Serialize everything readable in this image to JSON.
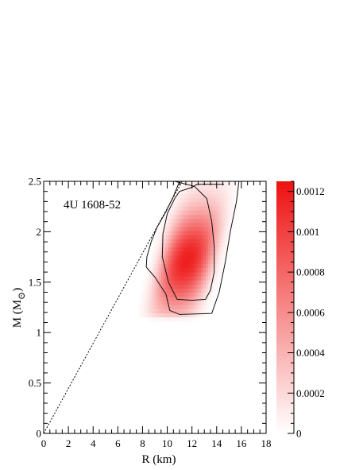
{
  "chart_data": {
    "type": "heatmap",
    "annotation": "4U 1608-52",
    "xlabel": "R (km)",
    "ylabel": "M (M",
    "ylabel_sub": "⊙",
    "ylabel_close": ")",
    "xlim": [
      0,
      18
    ],
    "ylim": [
      0,
      2.5
    ],
    "x_ticks": [
      "0",
      "2",
      "4",
      "6",
      "8",
      "10",
      "12",
      "14",
      "16",
      "18"
    ],
    "y_ticks": [
      "0",
      "0.5",
      "1",
      "1.5",
      "2",
      "2.5"
    ],
    "colorbar": {
      "range": [
        0,
        0.00125
      ],
      "ticks": [
        "0",
        "0.0002",
        "0.0004",
        "0.0006",
        "0.0008",
        "0.001",
        "0.0012"
      ],
      "low_color": "#ffffff",
      "high_color": "#ee1111"
    },
    "causality_line": {
      "style": "dotted",
      "points": [
        [
          0,
          0
        ],
        [
          11.2,
          2.5
        ]
      ]
    },
    "density": {
      "peak": [
        11.6,
        1.72
      ],
      "peak_value": 0.00118,
      "sigma_r": 1.55,
      "sigma_m": 0.36,
      "extent_r": [
        8.2,
        16.5
      ],
      "extent_m": [
        1.12,
        2.5
      ]
    },
    "contours": [
      {
        "name": "inner",
        "points": [
          [
            10.6,
            2.5
          ],
          [
            12.2,
            2.45
          ],
          [
            13.2,
            2.33
          ],
          [
            13.6,
            2.1
          ],
          [
            13.8,
            1.85
          ],
          [
            13.8,
            1.6
          ],
          [
            13.5,
            1.42
          ],
          [
            13.1,
            1.33
          ],
          [
            12.0,
            1.32
          ],
          [
            10.8,
            1.33
          ],
          [
            10.1,
            1.5
          ],
          [
            9.6,
            1.75
          ],
          [
            9.65,
            1.98
          ],
          [
            10.0,
            2.18
          ],
          [
            10.6,
            2.33
          ],
          [
            11.0,
            2.4
          ],
          [
            12.0,
            2.44
          ],
          [
            12.4,
            2.47
          ],
          [
            13.8,
            2.47
          ],
          [
            14.6,
            2.47
          ]
        ]
      },
      {
        "name": "outer",
        "points": [
          [
            11.0,
            2.5
          ],
          [
            15.8,
            2.5
          ],
          [
            15.6,
            2.3
          ],
          [
            15.1,
            2.0
          ],
          [
            14.7,
            1.7
          ],
          [
            14.2,
            1.4
          ],
          [
            13.6,
            1.19
          ],
          [
            11.0,
            1.18
          ],
          [
            10.2,
            1.22
          ],
          [
            9.9,
            1.38
          ],
          [
            9.0,
            1.55
          ],
          [
            8.3,
            1.65
          ],
          [
            8.35,
            1.75
          ],
          [
            8.7,
            1.9
          ],
          [
            9.2,
            2.05
          ],
          [
            9.9,
            2.2
          ],
          [
            10.5,
            2.35
          ],
          [
            11.0,
            2.5
          ]
        ]
      }
    ]
  }
}
